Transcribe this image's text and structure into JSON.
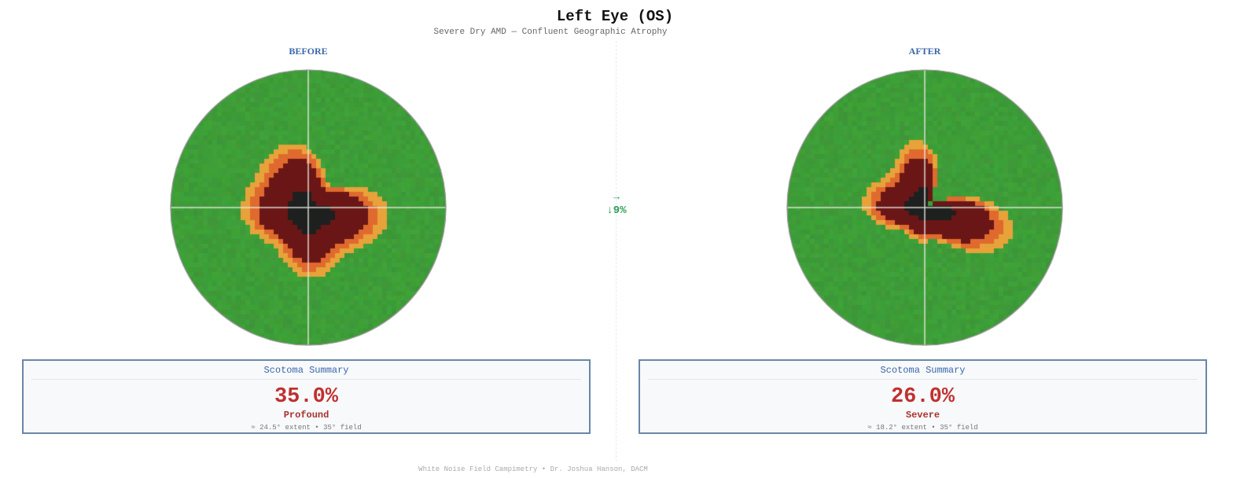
{
  "header": {
    "title": "Left Eye (OS)",
    "subtitle": "Severe Dry AMD — Confluent Geographic Atrophy"
  },
  "panels": [
    {
      "label": "BEFORE",
      "summary": {
        "title": "Scotoma Summary",
        "percent": "35.0%",
        "grade": "Profound",
        "meta": "≈ 24.5° extent  •  35° field"
      }
    },
    {
      "label": "AFTER",
      "summary": {
        "title": "Scotoma Summary",
        "percent": "26.0%",
        "grade": "Severe",
        "meta": "≈ 18.2° extent  •  35° field"
      }
    }
  ],
  "comparison": {
    "arrow": "→",
    "change": "↓9%"
  },
  "footer": "White Noise Field Campimetry • Dr. Joshua Hanson, DACM",
  "colors": {
    "normal": "#3f9e3a",
    "mild": "#e8a23a",
    "moderate": "#e06a2e",
    "severe": "#6b1616",
    "absolute": "#1e2020",
    "accent": "#3a66a8",
    "alert": "#c0302e",
    "improve": "#2f9e5a"
  },
  "chart_data": [
    {
      "type": "heatmap",
      "title": "BEFORE",
      "description": "Circular visual field map (35° field) with central scotoma",
      "field_degrees": 35,
      "scotoma_percent": 35.0,
      "extent_degrees": 24.5,
      "grade": "Profound",
      "scotoma_radius_frac": 0.42,
      "center_offset": [
        0.0,
        0.02
      ]
    },
    {
      "type": "heatmap",
      "title": "AFTER",
      "description": "Circular visual field map (35° field) with central scotoma",
      "field_degrees": 35,
      "scotoma_percent": 26.0,
      "extent_degrees": 18.2,
      "grade": "Severe",
      "scotoma_radius_frac": 0.33,
      "center_offset": [
        0.0,
        0.0
      ]
    }
  ]
}
